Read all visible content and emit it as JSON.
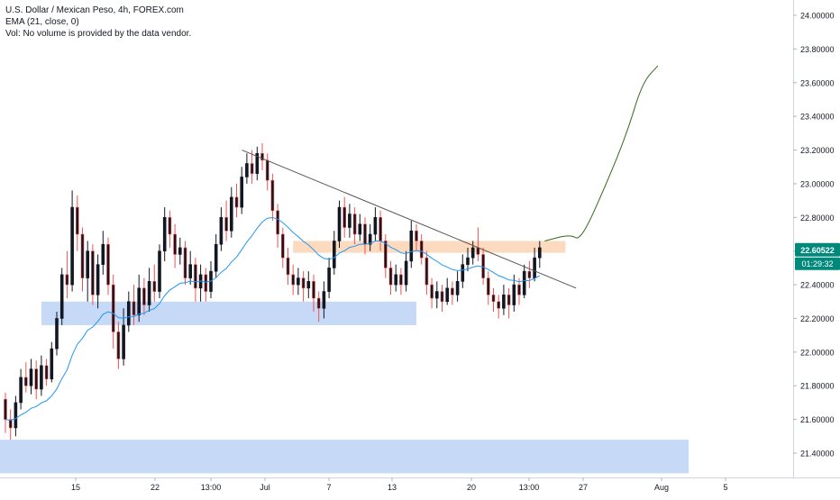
{
  "legend": {
    "symbol": "U.S. Dollar / Mexican Peso, 4h, FOREX.com",
    "ema": "EMA (21, close, 0)",
    "volume": "Vol: No volume is provided by the data vendor."
  },
  "chart_data": {
    "type": "candlestick",
    "title": "U.S. Dollar / Mexican Peso, 4h, FOREX.com",
    "ylim": [
      21.28,
      24.1
    ],
    "y_ticks": [
      "24.00000",
      "23.80000",
      "23.60000",
      "23.40000",
      "23.20000",
      "23.00000",
      "22.80000",
      "22.60000",
      "22.40000",
      "22.20000",
      "22.00000",
      "21.80000",
      "21.60000",
      "21.40000"
    ],
    "x_ticks": [
      "15",
      "22",
      "13:00",
      "Jul",
      "7",
      "13",
      "20",
      "13:00",
      "27",
      "Aug",
      "5"
    ],
    "price_label": "22.60522",
    "countdown_label": "01:29:32",
    "last_price": 22.60522,
    "colors": {
      "up": "#26a69a",
      "down": "#ef5350",
      "wick_up": "#000000",
      "body_up": "#131722",
      "body_down": "#131722",
      "ema": "#2196f3",
      "price_tag": "#00897b",
      "support_zone": "#b3cdf5",
      "resistance_zone": "#fbd3b4",
      "projection": "#33691e",
      "trendline": "#555555"
    },
    "candles": [
      [
        21.72,
        21.6,
        21.76,
        21.52
      ],
      [
        21.6,
        21.55,
        21.66,
        21.48
      ],
      [
        21.55,
        21.7,
        21.74,
        21.5
      ],
      [
        21.7,
        21.85,
        21.9,
        21.66
      ],
      [
        21.85,
        21.8,
        21.94,
        21.76
      ],
      [
        21.8,
        21.9,
        21.96,
        21.75
      ],
      [
        21.9,
        21.78,
        21.95,
        21.72
      ],
      [
        21.78,
        21.92,
        21.98,
        21.74
      ],
      [
        21.92,
        21.84,
        21.96,
        21.8
      ],
      [
        21.84,
        22.02,
        22.06,
        21.82
      ],
      [
        22.02,
        22.2,
        22.24,
        21.98
      ],
      [
        22.2,
        22.46,
        22.5,
        22.16
      ],
      [
        22.46,
        22.4,
        22.6,
        22.32
      ],
      [
        22.4,
        22.86,
        22.96,
        22.36
      ],
      [
        22.86,
        22.7,
        22.93,
        22.6
      ],
      [
        22.7,
        22.44,
        22.74,
        22.36
      ],
      [
        22.44,
        22.6,
        22.66,
        22.3
      ],
      [
        22.6,
        22.34,
        22.64,
        22.28
      ],
      [
        22.34,
        22.52,
        22.58,
        22.26
      ],
      [
        22.52,
        22.64,
        22.72,
        22.46
      ],
      [
        22.64,
        22.4,
        22.68,
        22.34
      ],
      [
        22.4,
        22.12,
        22.46,
        22.02
      ],
      [
        22.12,
        21.96,
        22.18,
        21.9
      ],
      [
        21.96,
        22.16,
        22.26,
        21.92
      ],
      [
        22.16,
        22.3,
        22.36,
        22.12
      ],
      [
        22.3,
        22.22,
        22.4,
        22.16
      ],
      [
        22.22,
        22.38,
        22.46,
        22.18
      ],
      [
        22.38,
        22.28,
        22.44,
        22.22
      ],
      [
        22.28,
        22.42,
        22.5,
        22.24
      ],
      [
        22.42,
        22.36,
        22.52,
        22.3
      ],
      [
        22.36,
        22.6,
        22.64,
        22.32
      ],
      [
        22.6,
        22.8,
        22.86,
        22.54
      ],
      [
        22.8,
        22.7,
        22.84,
        22.62
      ],
      [
        22.7,
        22.58,
        22.76,
        22.5
      ],
      [
        22.58,
        22.62,
        22.68,
        22.52
      ],
      [
        22.62,
        22.44,
        22.66,
        22.4
      ],
      [
        22.44,
        22.52,
        22.6,
        22.4
      ],
      [
        22.52,
        22.38,
        22.56,
        22.3
      ],
      [
        22.38,
        22.46,
        22.52,
        22.3
      ],
      [
        22.46,
        22.36,
        22.5,
        22.3
      ],
      [
        22.36,
        22.48,
        22.54,
        22.32
      ],
      [
        22.48,
        22.64,
        22.7,
        22.44
      ],
      [
        22.64,
        22.8,
        22.86,
        22.6
      ],
      [
        22.8,
        22.72,
        22.9,
        22.66
      ],
      [
        22.72,
        22.92,
        22.98,
        22.68
      ],
      [
        22.92,
        22.86,
        23.0,
        22.8
      ],
      [
        22.86,
        23.04,
        23.1,
        22.82
      ],
      [
        23.04,
        23.12,
        23.18,
        23.0
      ],
      [
        23.12,
        23.06,
        23.2,
        23.0
      ],
      [
        23.06,
        23.18,
        23.22,
        23.02
      ],
      [
        23.18,
        23.14,
        23.24,
        23.08
      ],
      [
        23.14,
        23.02,
        23.18,
        22.96
      ],
      [
        23.02,
        22.84,
        23.06,
        22.78
      ],
      [
        22.84,
        22.7,
        22.88,
        22.62
      ],
      [
        22.7,
        22.56,
        22.74,
        22.5
      ],
      [
        22.56,
        22.46,
        22.62,
        22.4
      ],
      [
        22.46,
        22.4,
        22.52,
        22.34
      ],
      [
        22.4,
        22.44,
        22.5,
        22.34
      ],
      [
        22.44,
        22.38,
        22.48,
        22.3
      ],
      [
        22.38,
        22.42,
        22.48,
        22.32
      ],
      [
        22.42,
        22.32,
        22.46,
        22.24
      ],
      [
        22.32,
        22.26,
        22.36,
        22.18
      ],
      [
        22.26,
        22.36,
        22.42,
        22.2
      ],
      [
        22.36,
        22.5,
        22.56,
        22.32
      ],
      [
        22.5,
        22.66,
        22.72,
        22.46
      ],
      [
        22.66,
        22.86,
        22.9,
        22.62
      ],
      [
        22.86,
        22.74,
        22.92,
        22.68
      ],
      [
        22.74,
        22.82,
        22.88,
        22.68
      ],
      [
        22.82,
        22.7,
        22.86,
        22.64
      ],
      [
        22.7,
        22.76,
        22.82,
        22.66
      ],
      [
        22.76,
        22.64,
        22.8,
        22.58
      ],
      [
        22.64,
        22.7,
        22.76,
        22.6
      ],
      [
        22.7,
        22.8,
        22.86,
        22.66
      ],
      [
        22.8,
        22.66,
        22.84,
        22.6
      ],
      [
        22.66,
        22.5,
        22.7,
        22.44
      ],
      [
        22.5,
        22.4,
        22.54,
        22.34
      ],
      [
        22.4,
        22.46,
        22.52,
        22.36
      ],
      [
        22.46,
        22.4,
        22.5,
        22.34
      ],
      [
        22.4,
        22.54,
        22.6,
        22.36
      ],
      [
        22.54,
        22.72,
        22.78,
        22.5
      ],
      [
        22.72,
        22.66,
        22.76,
        22.6
      ],
      [
        22.66,
        22.56,
        22.7,
        22.52
      ],
      [
        22.56,
        22.4,
        22.6,
        22.34
      ],
      [
        22.4,
        22.32,
        22.44,
        22.26
      ],
      [
        22.32,
        22.36,
        22.42,
        22.26
      ],
      [
        22.36,
        22.3,
        22.4,
        22.24
      ],
      [
        22.3,
        22.38,
        22.44,
        22.28
      ],
      [
        22.38,
        22.34,
        22.42,
        22.28
      ],
      [
        22.34,
        22.42,
        22.48,
        22.3
      ],
      [
        22.42,
        22.52,
        22.58,
        22.38
      ],
      [
        22.52,
        22.56,
        22.62,
        22.48
      ],
      [
        22.56,
        22.62,
        22.66,
        22.52
      ],
      [
        22.62,
        22.58,
        22.74,
        22.54
      ],
      [
        22.58,
        22.44,
        22.62,
        22.4
      ],
      [
        22.44,
        22.34,
        22.48,
        22.28
      ],
      [
        22.34,
        22.3,
        22.38,
        22.24
      ],
      [
        22.3,
        22.26,
        22.34,
        22.2
      ],
      [
        22.26,
        22.34,
        22.4,
        22.22
      ],
      [
        22.34,
        22.28,
        22.38,
        22.2
      ],
      [
        22.28,
        22.4,
        22.46,
        22.24
      ],
      [
        22.4,
        22.34,
        22.44,
        22.28
      ],
      [
        22.34,
        22.48,
        22.52,
        22.32
      ],
      [
        22.48,
        22.44,
        22.54,
        22.38
      ],
      [
        22.44,
        22.56,
        22.62,
        22.42
      ],
      [
        22.56,
        22.62,
        22.66,
        22.5
      ]
    ],
    "support_zones": [
      {
        "from_index": 7,
        "to_index": 80,
        "low": 22.16,
        "high": 22.3
      },
      {
        "from_index": -2,
        "to_index": 133,
        "low": 21.28,
        "high": 21.48
      }
    ],
    "resistance_zone": {
      "from_index": 56,
      "to_index": 109,
      "low": 22.59,
      "high": 22.66
    },
    "trendline": [
      [
        32,
        23.2
      ],
      [
        76,
        22.38
      ]
    ],
    "projection": [
      [
        72,
        22.66
      ],
      [
        77,
        22.7
      ],
      [
        79,
        22.66
      ],
      [
        84,
        23.0
      ],
      [
        88,
        23.3
      ],
      [
        91,
        23.6
      ],
      [
        94,
        23.7
      ]
    ]
  }
}
